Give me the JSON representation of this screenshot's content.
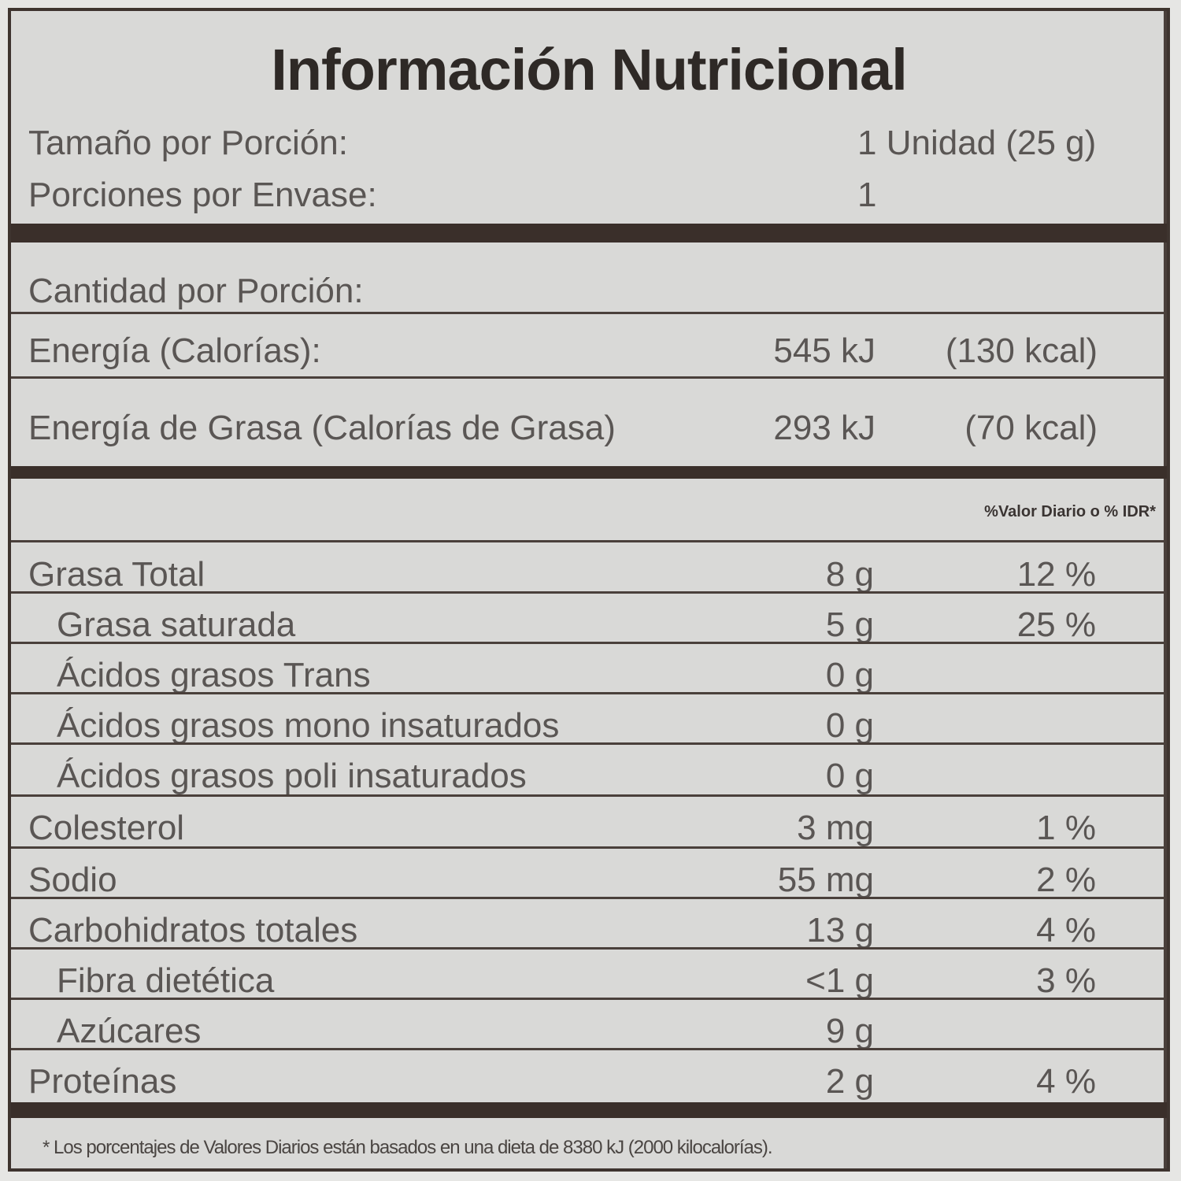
{
  "title": "Información Nutricional",
  "serving": {
    "size_label": "Tamaño por Porción:",
    "size_value": "1 Unidad (25 g)",
    "servings_label": "Porciones por Envase:",
    "servings_value": "1"
  },
  "amount_per_serving": "Cantidad por Porción:",
  "energy": {
    "label": "Energía (Calorías):",
    "kj": "545 kJ",
    "kcal": "(130 kcal)"
  },
  "fat_energy": {
    "label": "Energía de Grasa (Calorías de Grasa)",
    "kj": "293 kJ",
    "kcal": "(70 kcal)"
  },
  "dv_header": "%Valor Diario o % IDR*",
  "nutrients": [
    {
      "name": "Grasa Total",
      "amount": "8 g",
      "dv": "12 %",
      "indent": false
    },
    {
      "name": "Grasa saturada",
      "amount": "5 g",
      "dv": "25 %",
      "indent": true
    },
    {
      "name": "Ácidos grasos Trans",
      "amount": "0 g",
      "dv": "",
      "indent": true
    },
    {
      "name": "Ácidos grasos mono insaturados",
      "amount": "0 g",
      "dv": "",
      "indent": true
    },
    {
      "name": "Ácidos grasos poli insaturados",
      "amount": "0 g",
      "dv": "",
      "indent": true
    },
    {
      "name": "Colesterol",
      "amount": "3 mg",
      "dv": "1 %",
      "indent": false
    },
    {
      "name": "Sodio",
      "amount": "55 mg",
      "dv": "2 %",
      "indent": false
    },
    {
      "name": "Carbohidratos totales",
      "amount": "13 g",
      "dv": "4 %",
      "indent": false
    },
    {
      "name": "Fibra dietética",
      "amount": "<1 g",
      "dv": "3 %",
      "indent": true
    },
    {
      "name": "Azúcares",
      "amount": "9 g",
      "dv": "",
      "indent": true
    },
    {
      "name": "Proteínas",
      "amount": "2 g",
      "dv": "4 %",
      "indent": false
    }
  ],
  "footnote": "* Los porcentajes de Valores Diarios están basados en una dieta de 8380 kJ (2000 kilocalorías).",
  "colors": {
    "rule": "#3a2f2a",
    "background": "#d9d9d7",
    "text": "#5a5654"
  }
}
